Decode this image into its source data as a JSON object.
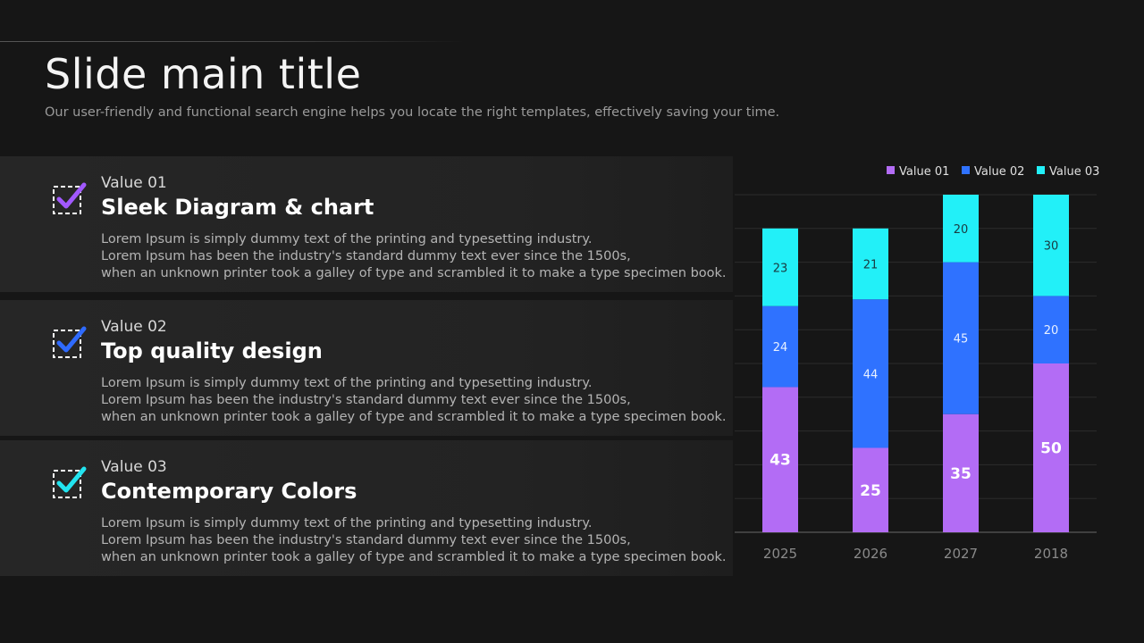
{
  "slide": {
    "title": "Slide main title",
    "subtitle": "Our user-friendly and functional search engine helps you locate the right templates, effectively saving your time."
  },
  "items": [
    {
      "label": "Value 01",
      "heading": "Sleek Diagram & chart",
      "lines": [
        "Lorem Ipsum is simply dummy text of the printing and typesetting industry.",
        "Lorem Ipsum has been the industry's standard dummy text ever since the 1500s,",
        "when an unknown printer took a galley of type and scrambled it to make a type specimen book."
      ],
      "check_color": "#a259ff"
    },
    {
      "label": "Value 02",
      "heading": "Top quality design",
      "lines": [
        "Lorem Ipsum is simply dummy text of the printing and typesetting industry.",
        "Lorem Ipsum has been the industry's standard dummy text ever since the 1500s,",
        "when an unknown printer took a galley of type and scrambled it to make a type specimen book."
      ],
      "check_color": "#2f6bff"
    },
    {
      "label": "Value 03",
      "heading": "Contemporary Colors",
      "lines": [
        "Lorem Ipsum is simply dummy text of the printing and typesetting industry.",
        "Lorem Ipsum has been the industry's standard dummy text ever since the 1500s,",
        "when an unknown printer took a galley of type and scrambled it to make a type specimen book."
      ],
      "check_color": "#22e4f0"
    }
  ],
  "chart_data": {
    "type": "bar",
    "stacked": true,
    "categories": [
      "2025",
      "2026",
      "2027",
      "2018"
    ],
    "series": [
      {
        "name": "Value 01",
        "values": [
          43,
          25,
          35,
          50
        ],
        "color": "#b36cf5"
      },
      {
        "name": "Value 02",
        "values": [
          24,
          44,
          45,
          20
        ],
        "color": "#2f72ff"
      },
      {
        "name": "Value 03",
        "values": [
          23,
          21,
          20,
          30
        ],
        "color": "#22f0f8"
      }
    ],
    "ylim": [
      0,
      100
    ],
    "legend": "top-right",
    "grid": true
  }
}
